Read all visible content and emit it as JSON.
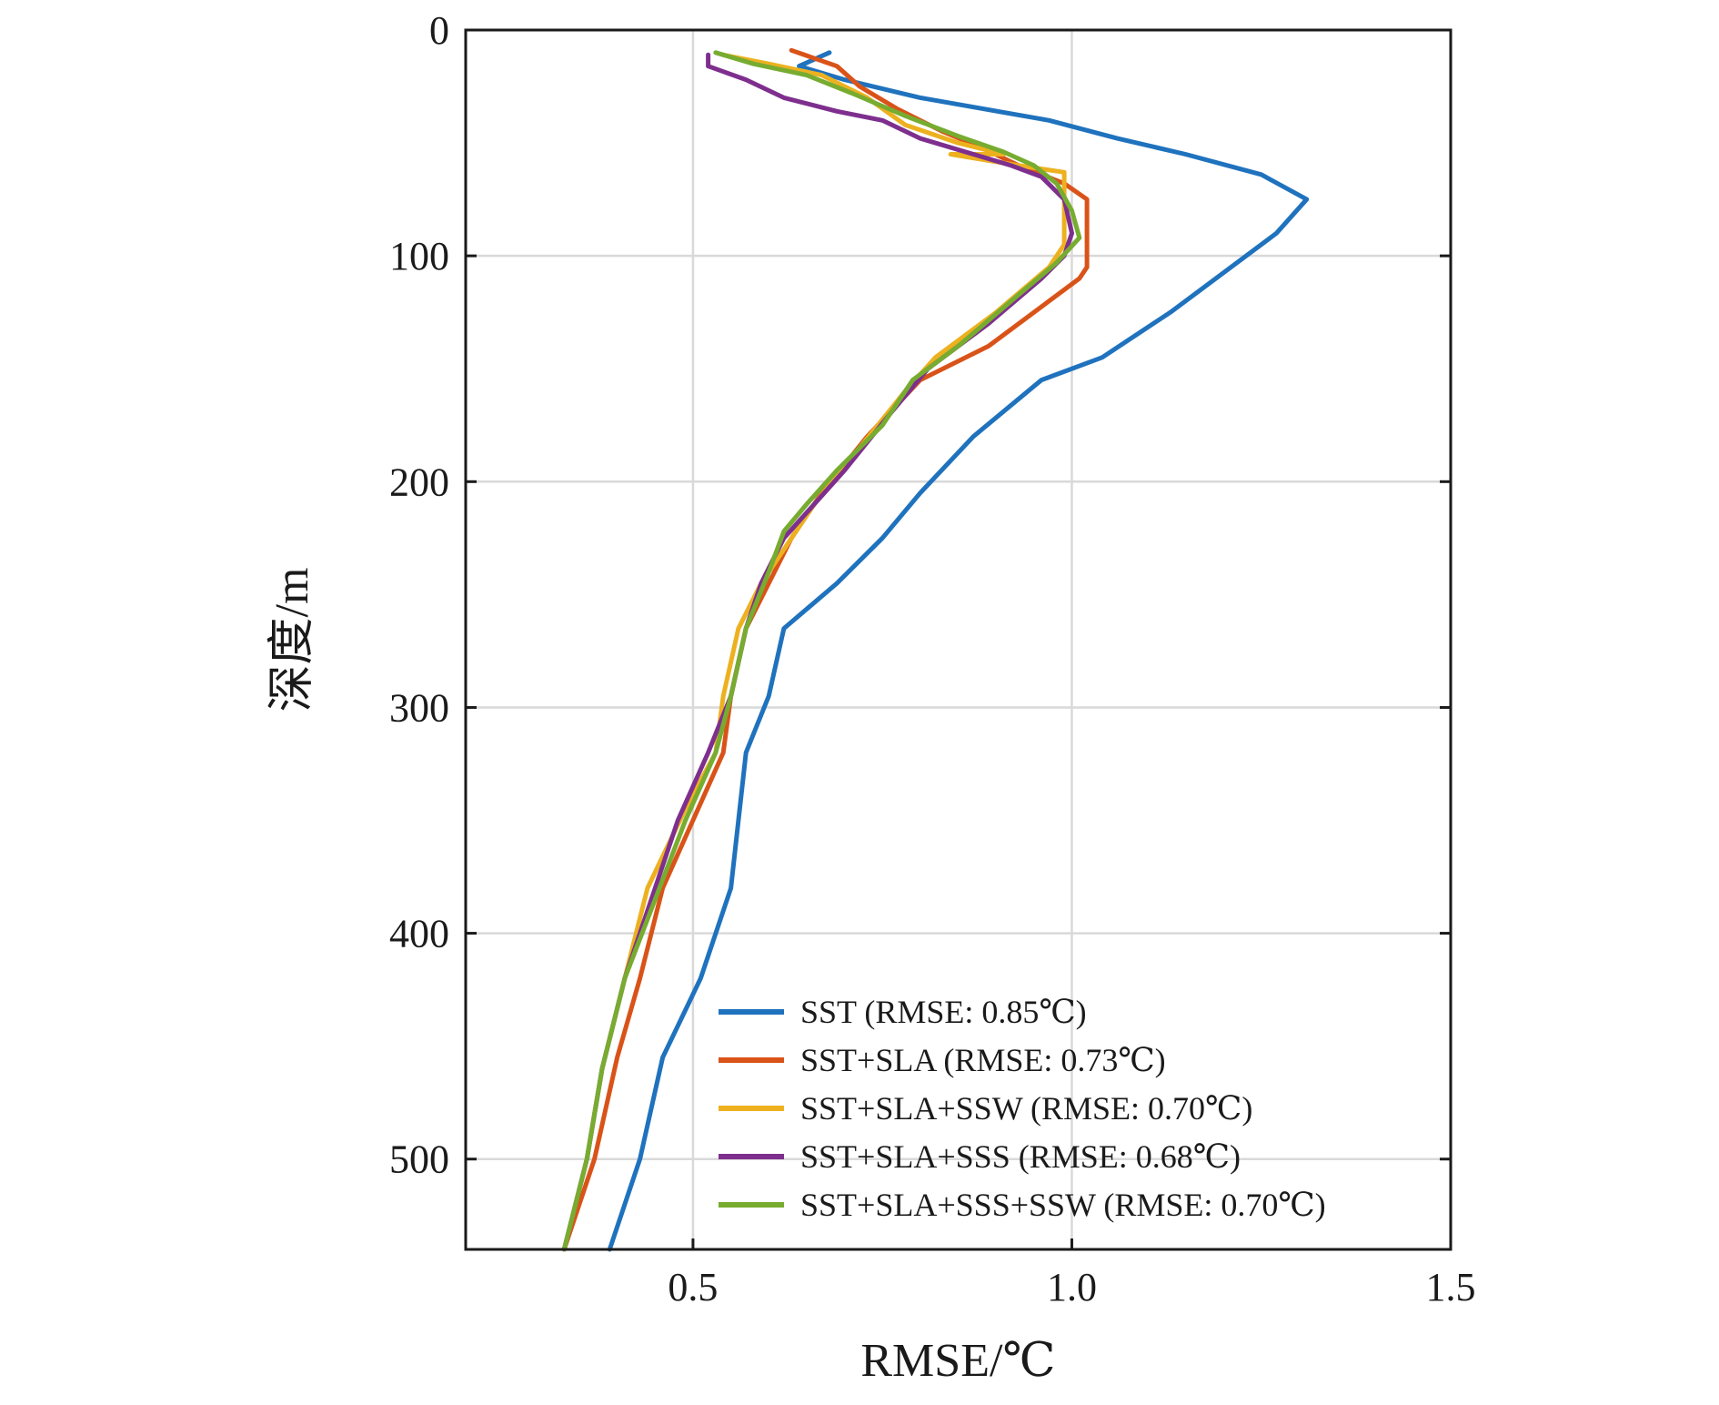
{
  "chart_data": {
    "type": "line",
    "xlabel": "RMSE/℃",
    "ylabel": "深度/m",
    "xlim": [
      0.2,
      1.5
    ],
    "ylim": [
      540,
      0
    ],
    "y_reversed": true,
    "grid": true,
    "legend_position": "bottom-right",
    "xticks": [
      {
        "value": 0.5,
        "label": "0.5"
      },
      {
        "value": 1.0,
        "label": "1.0"
      },
      {
        "value": 1.5,
        "label": "1.5"
      }
    ],
    "yticks": [
      {
        "value": 0,
        "label": "0"
      },
      {
        "value": 100,
        "label": "100"
      },
      {
        "value": 200,
        "label": "200"
      },
      {
        "value": 300,
        "label": "300"
      },
      {
        "value": 400,
        "label": "400"
      },
      {
        "value": 500,
        "label": "500"
      }
    ],
    "series": [
      {
        "name": "SST (RMSE: 0.85℃)",
        "color": "#1f72bd",
        "points": [
          [
            0.68,
            10
          ],
          [
            0.64,
            16
          ],
          [
            0.7,
            22
          ],
          [
            0.8,
            30
          ],
          [
            0.97,
            40
          ],
          [
            1.06,
            48
          ],
          [
            1.15,
            55
          ],
          [
            1.25,
            64
          ],
          [
            1.31,
            75
          ],
          [
            1.27,
            90
          ],
          [
            1.21,
            105
          ],
          [
            1.13,
            125
          ],
          [
            1.04,
            145
          ],
          [
            0.96,
            155
          ],
          [
            0.87,
            180
          ],
          [
            0.8,
            205
          ],
          [
            0.75,
            225
          ],
          [
            0.69,
            245
          ],
          [
            0.62,
            265
          ],
          [
            0.6,
            295
          ],
          [
            0.57,
            320
          ],
          [
            0.56,
            350
          ],
          [
            0.55,
            380
          ],
          [
            0.51,
            420
          ],
          [
            0.46,
            455
          ],
          [
            0.43,
            500
          ],
          [
            0.39,
            540
          ]
        ]
      },
      {
        "name": "SST+SLA (RMSE: 0.73℃)",
        "color": "#d95319",
        "points": [
          [
            0.63,
            9
          ],
          [
            0.69,
            16
          ],
          [
            0.72,
            25
          ],
          [
            0.77,
            35
          ],
          [
            0.83,
            45
          ],
          [
            0.88,
            52
          ],
          [
            0.93,
            60
          ],
          [
            0.99,
            68
          ],
          [
            1.02,
            75
          ],
          [
            1.02,
            90
          ],
          [
            1.02,
            105
          ],
          [
            1.01,
            110
          ],
          [
            0.97,
            120
          ],
          [
            0.89,
            140
          ],
          [
            0.8,
            155
          ],
          [
            0.73,
            180
          ],
          [
            0.67,
            205
          ],
          [
            0.63,
            225
          ],
          [
            0.6,
            245
          ],
          [
            0.57,
            265
          ],
          [
            0.55,
            295
          ],
          [
            0.54,
            320
          ],
          [
            0.5,
            350
          ],
          [
            0.46,
            380
          ],
          [
            0.43,
            420
          ],
          [
            0.4,
            455
          ],
          [
            0.37,
            500
          ],
          [
            0.33,
            540
          ]
        ]
      },
      {
        "name": "SST+SLA+SSW (RMSE: 0.70℃)",
        "color": "#edb120",
        "points": [
          [
            0.54,
            11
          ],
          [
            0.6,
            15
          ],
          [
            0.67,
            20
          ],
          [
            0.73,
            30
          ],
          [
            0.78,
            42
          ],
          [
            0.85,
            50
          ],
          [
            0.91,
            55
          ],
          [
            0.84,
            55
          ],
          [
            0.93,
            60
          ],
          [
            0.99,
            63
          ],
          [
            0.99,
            80
          ],
          [
            0.99,
            95
          ],
          [
            0.97,
            105
          ],
          [
            0.9,
            125
          ],
          [
            0.82,
            145
          ],
          [
            0.78,
            160
          ],
          [
            0.72,
            185
          ],
          [
            0.66,
            210
          ],
          [
            0.63,
            225
          ],
          [
            0.59,
            245
          ],
          [
            0.56,
            265
          ],
          [
            0.54,
            295
          ],
          [
            0.53,
            320
          ],
          [
            0.49,
            345
          ],
          [
            0.44,
            380
          ],
          [
            0.41,
            420
          ],
          [
            0.38,
            460
          ],
          [
            0.36,
            500
          ],
          [
            0.33,
            540
          ]
        ]
      },
      {
        "name": "SST+SLA+SSS (RMSE: 0.68℃)",
        "color": "#7e2f8e",
        "points": [
          [
            0.52,
            11
          ],
          [
            0.52,
            16
          ],
          [
            0.57,
            22
          ],
          [
            0.62,
            30
          ],
          [
            0.69,
            36
          ],
          [
            0.75,
            40
          ],
          [
            0.8,
            48
          ],
          [
            0.87,
            55
          ],
          [
            0.92,
            60
          ],
          [
            0.96,
            65
          ],
          [
            0.99,
            75
          ],
          [
            1.0,
            90
          ],
          [
            0.99,
            100
          ],
          [
            0.96,
            110
          ],
          [
            0.89,
            130
          ],
          [
            0.81,
            150
          ],
          [
            0.76,
            170
          ],
          [
            0.7,
            195
          ],
          [
            0.66,
            210
          ],
          [
            0.62,
            225
          ],
          [
            0.59,
            245
          ],
          [
            0.57,
            265
          ],
          [
            0.55,
            295
          ],
          [
            0.52,
            320
          ],
          [
            0.48,
            350
          ],
          [
            0.45,
            380
          ],
          [
            0.41,
            420
          ],
          [
            0.38,
            460
          ],
          [
            0.36,
            500
          ],
          [
            0.33,
            540
          ]
        ]
      },
      {
        "name": "SST+SLA+SSS+SSW (RMSE: 0.70℃)",
        "color": "#77ac30",
        "points": [
          [
            0.53,
            10
          ],
          [
            0.58,
            15
          ],
          [
            0.65,
            20
          ],
          [
            0.71,
            28
          ],
          [
            0.78,
            38
          ],
          [
            0.85,
            47
          ],
          [
            0.91,
            54
          ],
          [
            0.95,
            60
          ],
          [
            0.98,
            68
          ],
          [
            1.0,
            80
          ],
          [
            1.01,
            92
          ],
          [
            0.98,
            103
          ],
          [
            0.92,
            120
          ],
          [
            0.85,
            140
          ],
          [
            0.79,
            155
          ],
          [
            0.75,
            175
          ],
          [
            0.69,
            195
          ],
          [
            0.65,
            210
          ],
          [
            0.62,
            222
          ],
          [
            0.6,
            240
          ],
          [
            0.57,
            265
          ],
          [
            0.55,
            295
          ],
          [
            0.53,
            320
          ],
          [
            0.49,
            350
          ],
          [
            0.45,
            385
          ],
          [
            0.41,
            420
          ],
          [
            0.38,
            460
          ],
          [
            0.36,
            500
          ],
          [
            0.33,
            540
          ]
        ]
      }
    ]
  }
}
